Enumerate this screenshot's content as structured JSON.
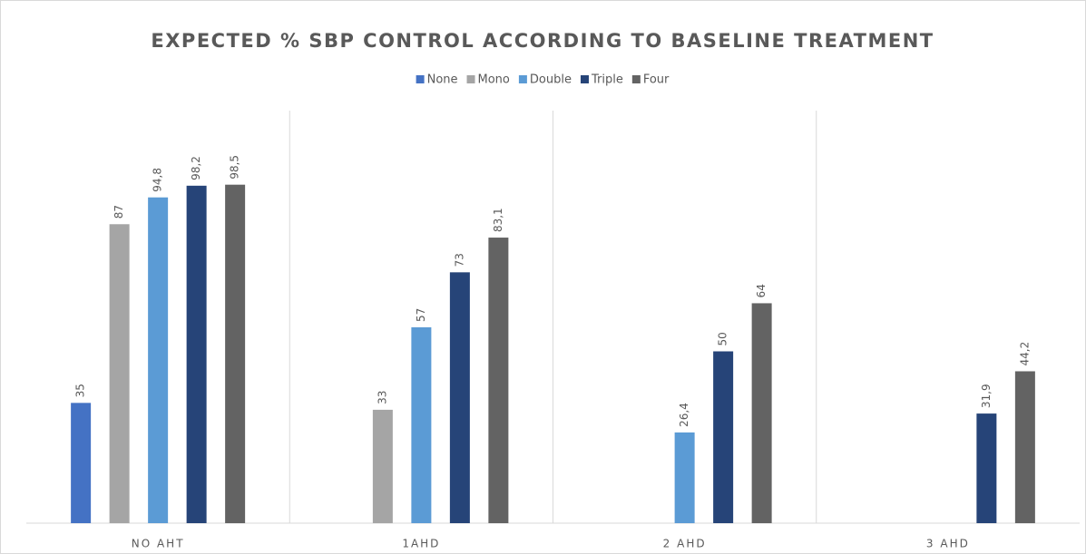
{
  "chart_data": {
    "type": "bar",
    "title": "EXPECTED % SBP CONTROL ACCORDING TO BASELINE TREATMENT",
    "categories": [
      "NO AHT",
      "1AHD",
      "2 AHD",
      "3 AHD"
    ],
    "series": [
      {
        "name": "None",
        "color": "#4472c4",
        "values": [
          35,
          null,
          null,
          null
        ],
        "value_labels": [
          "35",
          null,
          null,
          null
        ]
      },
      {
        "name": "Mono",
        "color": "#a5a5a5",
        "values": [
          87,
          33,
          null,
          null
        ],
        "value_labels": [
          "87",
          "33",
          null,
          null
        ]
      },
      {
        "name": "Double",
        "color": "#5b9bd5",
        "values": [
          94.8,
          57,
          26.4,
          null
        ],
        "value_labels": [
          "94,8",
          "57",
          "26,4",
          null
        ]
      },
      {
        "name": "Triple",
        "color": "#264478",
        "values": [
          98.2,
          73,
          50,
          31.9
        ],
        "value_labels": [
          "98,2",
          "73",
          "50",
          "31,9"
        ]
      },
      {
        "name": "Four",
        "color": "#636363",
        "values": [
          98.5,
          83.1,
          64,
          44.2
        ],
        "value_labels": [
          "98,5",
          "83,1",
          "64",
          "44,2"
        ]
      }
    ],
    "legend": "top",
    "grid": "vertical"
  }
}
